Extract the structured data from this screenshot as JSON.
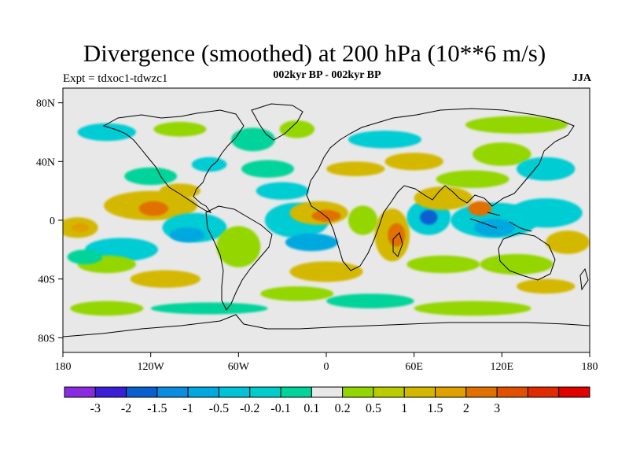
{
  "title": "Divergence (smoothed) at 200 hPa (10**6 m/s)",
  "subtitle_left": "Expt = tdxoc1-tdwzc1",
  "subtitle_center": "002kyr BP - 002kyr BP",
  "subtitle_right": "JJA",
  "map": {
    "x_labels": [
      "180",
      "120W",
      "60W",
      "0",
      "60E",
      "120E",
      "180"
    ],
    "y_labels": [
      "80N",
      "40N",
      "0",
      "40S",
      "80S"
    ],
    "lat_values": [
      80,
      40,
      0,
      -40,
      -80
    ],
    "lon_values": [
      -180,
      -120,
      -60,
      0,
      60,
      120,
      180
    ],
    "background_color": "#e8e8e8",
    "anomalies": [
      {
        "lon": -120,
        "lat": 10,
        "rx": 32,
        "ry": 10,
        "color": "#d4b800"
      },
      {
        "lon": -118,
        "lat": 8,
        "rx": 10,
        "ry": 5,
        "color": "#e07000"
      },
      {
        "lon": -170,
        "lat": -5,
        "rx": 14,
        "ry": 7,
        "color": "#d4b800"
      },
      {
        "lon": -168,
        "lat": -5,
        "rx": 6,
        "ry": 3,
        "color": "#e0a000"
      },
      {
        "lon": -140,
        "lat": -20,
        "rx": 25,
        "ry": 8,
        "color": "#00ccd4"
      },
      {
        "lon": -120,
        "lat": 30,
        "rx": 18,
        "ry": 6,
        "color": "#00d49a"
      },
      {
        "lon": -90,
        "lat": -5,
        "rx": 22,
        "ry": 10,
        "color": "#00ccd4"
      },
      {
        "lon": -95,
        "lat": -10,
        "rx": 12,
        "ry": 5,
        "color": "#00a8e0"
      },
      {
        "lon": -100,
        "lat": 20,
        "rx": 14,
        "ry": 5,
        "color": "#d4b800"
      },
      {
        "lon": -150,
        "lat": -30,
        "rx": 20,
        "ry": 6,
        "color": "#94d600"
      },
      {
        "lon": -165,
        "lat": -25,
        "rx": 12,
        "ry": 5,
        "color": "#00d49a"
      },
      {
        "lon": -110,
        "lat": -40,
        "rx": 24,
        "ry": 6,
        "color": "#d4b800"
      },
      {
        "lon": -60,
        "lat": -18,
        "rx": 15,
        "ry": 14,
        "color": "#94d600"
      },
      {
        "lon": -20,
        "lat": 0,
        "rx": 22,
        "ry": 12,
        "color": "#00ccd4"
      },
      {
        "lon": -10,
        "lat": -15,
        "rx": 18,
        "ry": 6,
        "color": "#00a8e0"
      },
      {
        "lon": -5,
        "lat": 5,
        "rx": 20,
        "ry": 8,
        "color": "#d4b800"
      },
      {
        "lon": 0,
        "lat": 3,
        "rx": 10,
        "ry": 4,
        "color": "#e07000"
      },
      {
        "lon": -30,
        "lat": 20,
        "rx": 18,
        "ry": 6,
        "color": "#00ccd4"
      },
      {
        "lon": -40,
        "lat": 35,
        "rx": 18,
        "ry": 6,
        "color": "#00d49a"
      },
      {
        "lon": -50,
        "lat": 55,
        "rx": 15,
        "ry": 8,
        "color": "#00d49a"
      },
      {
        "lon": -20,
        "lat": 62,
        "rx": 12,
        "ry": 6,
        "color": "#94d600"
      },
      {
        "lon": 0,
        "lat": -35,
        "rx": 25,
        "ry": 7,
        "color": "#d4b800"
      },
      {
        "lon": -20,
        "lat": -50,
        "rx": 25,
        "ry": 5,
        "color": "#94d600"
      },
      {
        "lon": 30,
        "lat": -55,
        "rx": 30,
        "ry": 5,
        "color": "#00d49a"
      },
      {
        "lon": -80,
        "lat": -60,
        "rx": 40,
        "ry": 4,
        "color": "#00d49a"
      },
      {
        "lon": -150,
        "lat": -60,
        "rx": 25,
        "ry": 5,
        "color": "#94d600"
      },
      {
        "lon": 100,
        "lat": -60,
        "rx": 40,
        "ry": 5,
        "color": "#94d600"
      },
      {
        "lon": 150,
        "lat": -45,
        "rx": 20,
        "ry": 5,
        "color": "#d4b800"
      },
      {
        "lon": 45,
        "lat": -10,
        "rx": 12,
        "ry": 18,
        "color": "#d4b800"
      },
      {
        "lon": 48,
        "lat": -10,
        "rx": 6,
        "ry": 8,
        "color": "#e07000"
      },
      {
        "lon": 25,
        "lat": 0,
        "rx": 10,
        "ry": 10,
        "color": "#94d600"
      },
      {
        "lon": 70,
        "lat": 2,
        "rx": 15,
        "ry": 12,
        "color": "#00ccd4"
      },
      {
        "lon": 70,
        "lat": 2,
        "rx": 6,
        "ry": 5,
        "color": "#0a5fd0"
      },
      {
        "lon": 80,
        "lat": 15,
        "rx": 20,
        "ry": 8,
        "color": "#d4b800"
      },
      {
        "lon": 100,
        "lat": 28,
        "rx": 25,
        "ry": 6,
        "color": "#94d600"
      },
      {
        "lon": 115,
        "lat": 0,
        "rx": 30,
        "ry": 12,
        "color": "#00ccd4"
      },
      {
        "lon": 115,
        "lat": -5,
        "rx": 14,
        "ry": 6,
        "color": "#00a8e0"
      },
      {
        "lon": 105,
        "lat": 8,
        "rx": 8,
        "ry": 5,
        "color": "#e07000"
      },
      {
        "lon": 150,
        "lat": 5,
        "rx": 25,
        "ry": 10,
        "color": "#00ccd4"
      },
      {
        "lon": 165,
        "lat": -15,
        "rx": 15,
        "ry": 8,
        "color": "#d4b800"
      },
      {
        "lon": 130,
        "lat": -30,
        "rx": 25,
        "ry": 7,
        "color": "#94d600"
      },
      {
        "lon": 80,
        "lat": -30,
        "rx": 25,
        "ry": 6,
        "color": "#94d600"
      },
      {
        "lon": 60,
        "lat": 40,
        "rx": 20,
        "ry": 6,
        "color": "#d4b800"
      },
      {
        "lon": 120,
        "lat": 45,
        "rx": 20,
        "ry": 8,
        "color": "#94d600"
      },
      {
        "lon": 150,
        "lat": 35,
        "rx": 20,
        "ry": 8,
        "color": "#00ccd4"
      },
      {
        "lon": 40,
        "lat": 55,
        "rx": 25,
        "ry": 6,
        "color": "#00ccd4"
      },
      {
        "lon": 130,
        "lat": 65,
        "rx": 35,
        "ry": 6,
        "color": "#94d600"
      },
      {
        "lon": -150,
        "lat": 60,
        "rx": 20,
        "ry": 6,
        "color": "#00ccd4"
      },
      {
        "lon": -100,
        "lat": 62,
        "rx": 18,
        "ry": 5,
        "color": "#94d600"
      },
      {
        "lon": -80,
        "lat": 38,
        "rx": 12,
        "ry": 5,
        "color": "#00ccd4"
      },
      {
        "lon": 20,
        "lat": 35,
        "rx": 20,
        "ry": 5,
        "color": "#d4b800"
      }
    ]
  },
  "legend": {
    "colors": [
      "#8a2be2",
      "#3a1fd6",
      "#0a5fd0",
      "#0a8ce0",
      "#00a8e0",
      "#00c2d8",
      "#00cccc",
      "#00d49a",
      "#e8e8e8",
      "#94d600",
      "#b8cc00",
      "#d4b800",
      "#e0a000",
      "#e07000",
      "#e05000",
      "#e02a00",
      "#e00000"
    ],
    "labels": [
      "-3",
      "-2",
      "-1.5",
      "-1",
      "-0.5",
      "-0.2",
      "-0.1",
      "0.1",
      "0.2",
      "0.5",
      "1",
      "1.5",
      "2",
      "3"
    ]
  }
}
